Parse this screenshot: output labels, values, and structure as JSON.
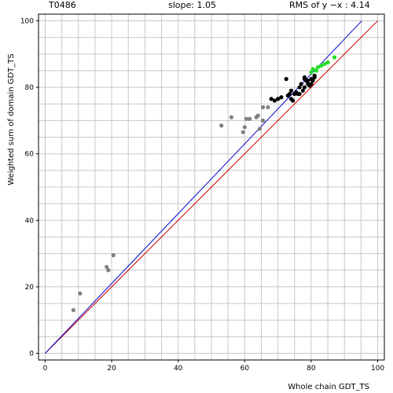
{
  "header": {
    "target": "T0486",
    "slope": "slope: 1.05",
    "rms": "RMS of  y −x : 4.14"
  },
  "chart_data": {
    "type": "scatter",
    "xlabel": "Whole chain GDT_TS",
    "ylabel": "Weighted sum of domain GDT_TS",
    "xlim": [
      -2,
      102
    ],
    "ylim": [
      -2,
      102
    ],
    "x_ticks": [
      0,
      20,
      40,
      60,
      80,
      100
    ],
    "y_ticks": [
      0,
      20,
      40,
      60,
      80,
      100
    ],
    "x_tick_labels": [
      "0",
      "20",
      "40",
      "60",
      "80",
      "100"
    ],
    "y_tick_labels": [
      "0",
      "20",
      "40",
      "60",
      "80",
      "100"
    ],
    "grid": true,
    "grid_step": 5,
    "lines": [
      {
        "label": "y = x",
        "color": "#cc0000",
        "slope": 1.0,
        "intercept": 0
      },
      {
        "label": "fit",
        "color": "#0000cc",
        "slope": 1.05,
        "intercept": 0
      }
    ],
    "series": [
      {
        "color": "#808080",
        "points": [
          [
            8.5,
            13
          ],
          [
            10.5,
            18
          ],
          [
            18.5,
            26
          ],
          [
            19,
            25
          ],
          [
            20.5,
            29.5
          ],
          [
            53,
            68.5
          ],
          [
            56,
            71
          ],
          [
            59.5,
            66.5
          ],
          [
            60,
            68
          ],
          [
            60.5,
            70.5
          ],
          [
            61.5,
            70.5
          ],
          [
            63.5,
            71
          ],
          [
            64,
            71.5
          ],
          [
            64.5,
            67.5
          ],
          [
            65.5,
            70
          ],
          [
            65.5,
            74
          ],
          [
            67,
            74
          ]
        ]
      },
      {
        "color": "#000000",
        "points": [
          [
            68,
            76.5
          ],
          [
            69,
            76
          ],
          [
            70,
            76.5
          ],
          [
            71,
            77
          ],
          [
            72.5,
            82.5
          ],
          [
            73,
            77.5
          ],
          [
            73.5,
            78
          ],
          [
            74,
            79
          ],
          [
            74,
            76.5
          ],
          [
            74.5,
            76
          ],
          [
            75,
            78
          ],
          [
            75.5,
            78.5
          ],
          [
            76,
            78
          ],
          [
            76.5,
            78
          ],
          [
            76.5,
            80
          ],
          [
            77,
            81
          ],
          [
            77.5,
            79
          ],
          [
            78,
            80
          ],
          [
            78,
            82.5
          ],
          [
            78,
            83
          ],
          [
            78.5,
            82
          ],
          [
            79,
            81
          ],
          [
            79.5,
            80.5
          ],
          [
            79,
            82
          ],
          [
            80,
            81
          ],
          [
            80,
            82.5
          ],
          [
            80.5,
            82
          ],
          [
            81,
            83
          ],
          [
            81,
            83.5
          ]
        ]
      },
      {
        "color": "#22dd22",
        "points": [
          [
            80,
            84.5
          ],
          [
            80.5,
            85.5
          ],
          [
            81.5,
            85
          ],
          [
            82,
            86
          ],
          [
            83,
            86.5
          ],
          [
            84,
            87
          ],
          [
            85,
            87.5
          ],
          [
            87,
            89
          ]
        ]
      }
    ]
  }
}
